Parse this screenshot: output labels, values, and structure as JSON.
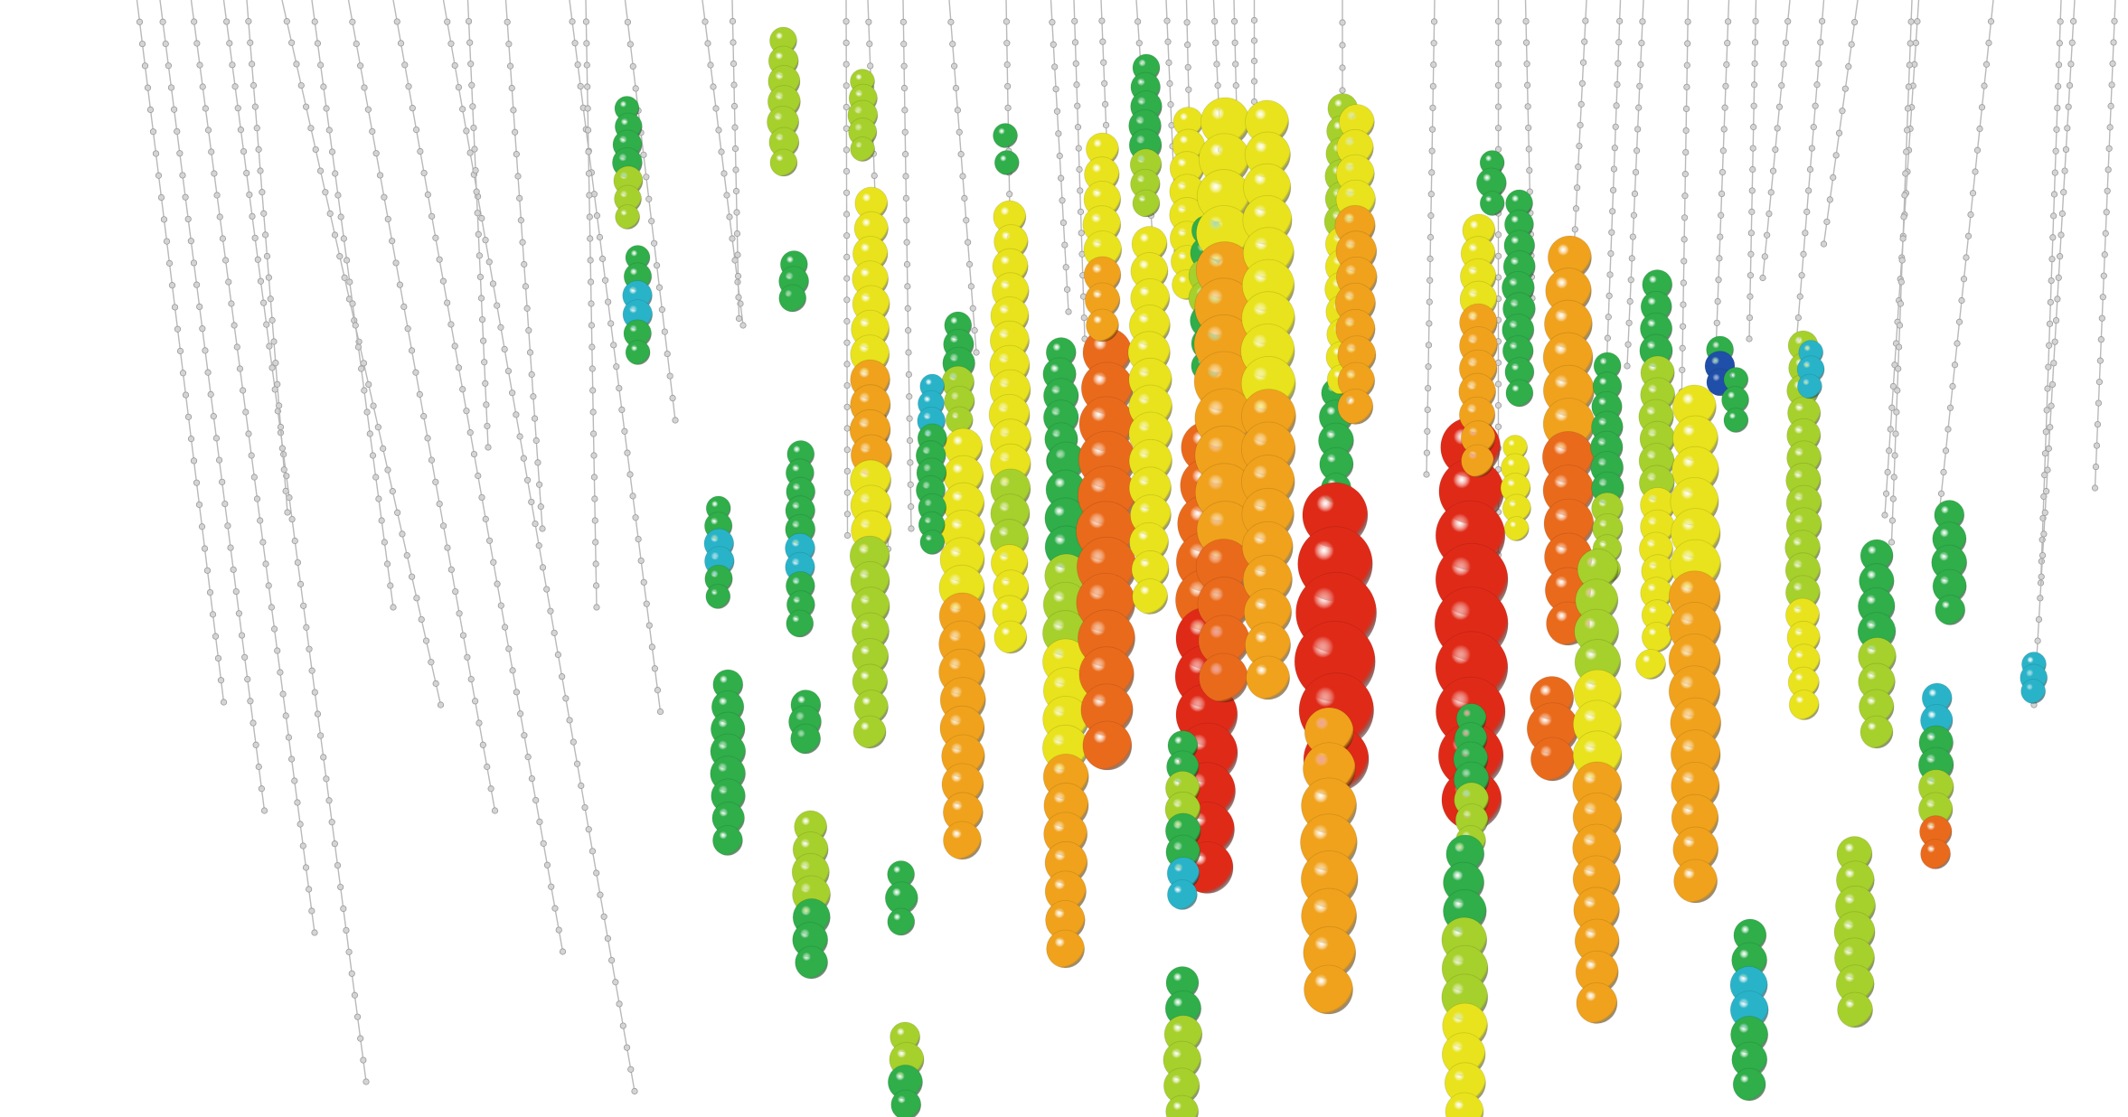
{
  "event_display": {
    "colors": {
      "background": "#ffffff",
      "string_line": "#b9b9b9",
      "sensor": "#d4d4d4",
      "hit_scale": [
        "#1f4fa8",
        "#29b3c8",
        "#2fae4a",
        "#a6d02c",
        "#e8e31c",
        "#f0a21c",
        "#ea6a1c",
        "#e02a18"
      ]
    },
    "legend": "none",
    "axes": "none",
    "labels": "none"
  }
}
